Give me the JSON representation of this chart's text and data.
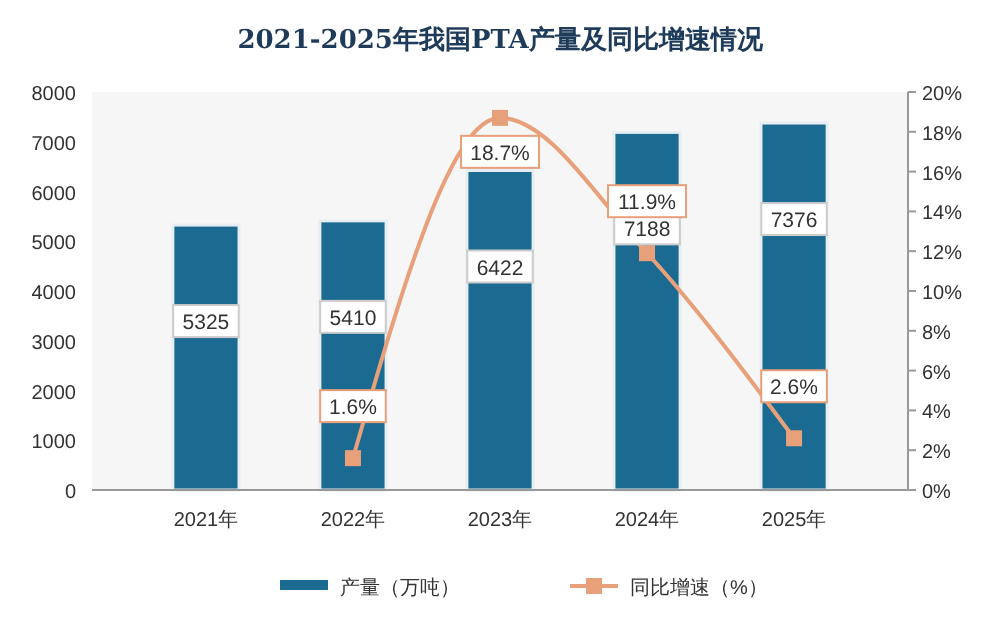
{
  "chart_data": {
    "type": "bar",
    "title": "2021-2025年我国PTA产量及同比增速情况",
    "categories": [
      "2021年",
      "2022年",
      "2023年",
      "2024年",
      "2025年"
    ],
    "series": [
      {
        "name": "产量（万吨）",
        "color": "#1b6a92",
        "values": [
          5325,
          5410,
          6422,
          7188,
          7376
        ],
        "value_labels": [
          "5325",
          "5410",
          "6422",
          "7188",
          "7376"
        ]
      },
      {
        "name": "同比增速（%）",
        "type": "line",
        "axis": "y2",
        "color": "#e8a07a",
        "values": [
          null,
          1.6,
          18.7,
          11.9,
          2.6
        ],
        "value_labels": [
          null,
          "1.6%",
          "18.7%",
          "11.9%",
          "2.6%"
        ]
      }
    ],
    "ylim": [
      0,
      8000
    ],
    "yticks": [
      0,
      1000,
      2000,
      3000,
      4000,
      5000,
      6000,
      7000,
      8000
    ],
    "y2lim": [
      0,
      20
    ],
    "y2ticks": [
      {
        "value": 0,
        "label": "0%"
      },
      {
        "value": 2,
        "label": "2%"
      },
      {
        "value": 4,
        "label": "4%"
      },
      {
        "value": 6,
        "label": "6%"
      },
      {
        "value": 8,
        "label": "8%"
      },
      {
        "value": 10,
        "label": "10%"
      },
      {
        "value": 12,
        "label": "12%"
      },
      {
        "value": 14,
        "label": "14%"
      },
      {
        "value": 16,
        "label": "16%"
      },
      {
        "value": 18,
        "label": "18%"
      },
      {
        "value": 20,
        "label": "20%"
      }
    ],
    "marker": "square",
    "legend": "bottom",
    "grid": false
  }
}
